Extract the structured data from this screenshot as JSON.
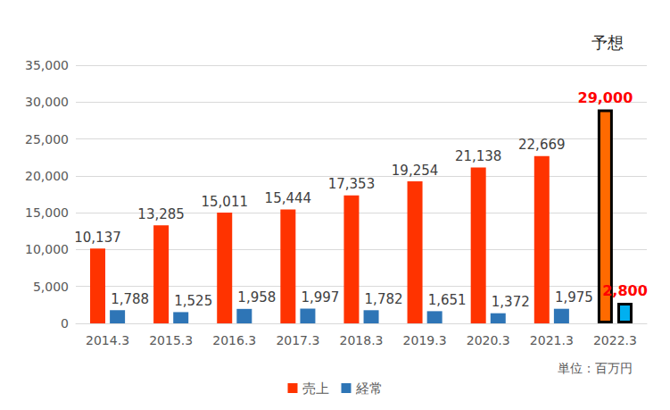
{
  "chart_data": {
    "type": "bar",
    "categories": [
      "2014.3",
      "2015.3",
      "2016.3",
      "2017.3",
      "2018.3",
      "2019.3",
      "2020.3",
      "2021.3",
      "2022.3"
    ],
    "series": [
      {
        "name": "売上",
        "colors": [
          "#ff3300",
          "#ff3300",
          "#ff3300",
          "#ff3300",
          "#ff3300",
          "#ff3300",
          "#ff3300",
          "#ff3300",
          "#ff6a00"
        ],
        "values": [
          10137,
          13285,
          15011,
          15444,
          17353,
          19254,
          21138,
          22669,
          29000
        ],
        "value_labels": [
          "10,137",
          "13,285",
          "15,011",
          "15,444",
          "17,353",
          "19,254",
          "21,138",
          "22,669",
          "29,000"
        ]
      },
      {
        "name": "経常",
        "colors": [
          "#2e75b6",
          "#2e75b6",
          "#2e75b6",
          "#2e75b6",
          "#2e75b6",
          "#2e75b6",
          "#2e75b6",
          "#2e75b6",
          "#00b0f0"
        ],
        "values": [
          1788,
          1525,
          1958,
          1997,
          1782,
          1651,
          1372,
          1975,
          2800
        ],
        "value_labels": [
          "1,788",
          "1,525",
          "1,958",
          "1,997",
          "1,782",
          "1,651",
          "1,372",
          "1,975",
          "2,800"
        ]
      }
    ],
    "ylim": [
      0,
      35000
    ],
    "yticks": [
      0,
      {
        "value": 5000,
        "label": "5,000"
      },
      {
        "value": 10000,
        "label": "10,000"
      },
      {
        "value": 15000,
        "label": "15,000"
      },
      {
        "value": 20000,
        "label": "20,000"
      },
      {
        "value": 25000,
        "label": "25,000"
      },
      {
        "value": 30000,
        "label": "30,000"
      },
      {
        "value": 35000,
        "label": "35,000"
      }
    ],
    "grid": true,
    "legend": "bottom",
    "data_labels": true,
    "annotations": [
      {
        "text": "予想",
        "category": "2022.3"
      },
      {
        "text": "単位：百万円"
      }
    ]
  }
}
